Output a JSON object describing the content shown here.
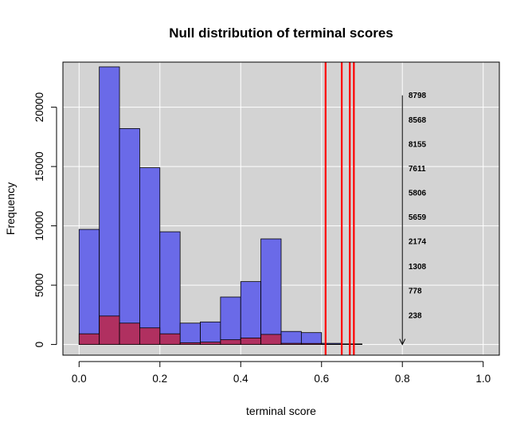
{
  "chart_data": {
    "type": "bar",
    "title": "Null distribution of terminal scores",
    "xlabel": "terminal score",
    "ylabel": "Frequency",
    "xlim": [
      -0.04,
      1.04
    ],
    "ylim": [
      -900,
      23800
    ],
    "x_ticks": [
      0.0,
      0.2,
      0.4,
      0.6,
      0.8,
      1.0
    ],
    "x_tick_labels": [
      "0.0",
      "0.2",
      "0.4",
      "0.6",
      "0.8",
      "1.0"
    ],
    "y_ticks": [
      0,
      5000,
      10000,
      15000,
      20000
    ],
    "y_tick_labels": [
      "0",
      "5000",
      "10000",
      "15000",
      "20000"
    ],
    "grid": true,
    "background": "#d3d3d3",
    "bin_edges": [
      0.0,
      0.05,
      0.1,
      0.15,
      0.2,
      0.25,
      0.3,
      0.35,
      0.4,
      0.45,
      0.5,
      0.55,
      0.6,
      0.65,
      0.7
    ],
    "series": [
      {
        "color": "#6a6ae8",
        "values": [
          9700,
          23400,
          18200,
          14900,
          9500,
          1800,
          1900,
          4000,
          5300,
          8900,
          1100,
          1000,
          100,
          50
        ]
      },
      {
        "color": "#b03060",
        "values": [
          900,
          2400,
          1800,
          1400,
          900,
          150,
          200,
          400,
          550,
          850,
          100,
          90,
          20,
          10
        ]
      }
    ],
    "vlines": {
      "color": "#ff0000",
      "x": [
        0.61,
        0.65,
        0.67,
        0.68
      ]
    },
    "arrow": {
      "x": 0.8,
      "y_from": 21000,
      "y_to": 0
    },
    "annotations": {
      "x": 0.815,
      "labels": [
        "8798",
        "8568",
        "8155",
        "7611",
        "5806",
        "5659",
        "2174",
        "1308",
        "778",
        "238"
      ],
      "y": [
        21000,
        18950,
        16900,
        14850,
        12800,
        10750,
        8700,
        6600,
        4550,
        2450
      ]
    }
  }
}
